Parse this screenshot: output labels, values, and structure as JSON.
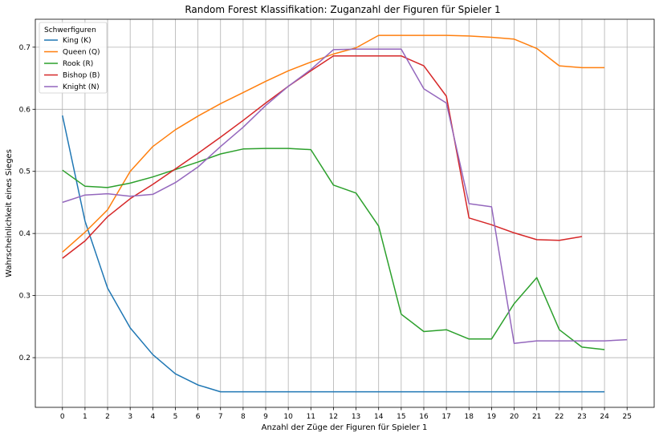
{
  "chart_data": {
    "type": "line",
    "title": "Random Forest Klassifikation: Zuganzahl der Figuren für Spieler 1",
    "xlabel": "Anzahl der Züge der Figuren für Spieler 1",
    "ylabel": "Wahrscheinlichkeit eines Sieges",
    "xlim": [
      -1.2,
      26.2
    ],
    "ylim": [
      0.12,
      0.745
    ],
    "x_ticks": [
      0,
      1,
      2,
      3,
      4,
      5,
      6,
      7,
      8,
      9,
      10,
      11,
      12,
      13,
      14,
      15,
      16,
      17,
      18,
      19,
      20,
      21,
      22,
      23,
      24,
      25
    ],
    "y_ticks": [
      0.2,
      0.3,
      0.4,
      0.5,
      0.6,
      0.7
    ],
    "grid": true,
    "legend": {
      "title": "Schwerfiguren",
      "position": "top-left"
    },
    "series": [
      {
        "name": "King (K)",
        "color": "#1f77b4",
        "x": [
          0,
          1,
          2,
          3,
          4,
          5,
          6,
          7,
          8,
          9,
          10,
          11,
          12,
          13,
          14,
          15,
          16,
          17,
          18,
          19,
          20,
          21,
          22,
          23,
          24
        ],
        "values": [
          0.59,
          0.42,
          0.312,
          0.248,
          0.205,
          0.174,
          0.156,
          0.145,
          0.145,
          0.145,
          0.145,
          0.145,
          0.145,
          0.145,
          0.145,
          0.145,
          0.145,
          0.145,
          0.145,
          0.145,
          0.145,
          0.145,
          0.145,
          0.145,
          0.145
        ]
      },
      {
        "name": "Queen (Q)",
        "color": "#ff7f0e",
        "x": [
          0,
          1,
          2,
          3,
          4,
          5,
          6,
          7,
          8,
          9,
          10,
          11,
          12,
          13,
          14,
          15,
          16,
          17,
          18,
          19,
          20,
          21,
          22,
          23,
          24
        ],
        "values": [
          0.37,
          0.402,
          0.438,
          0.5,
          0.54,
          0.567,
          0.589,
          0.609,
          0.627,
          0.645,
          0.662,
          0.676,
          0.689,
          0.699,
          0.719,
          0.719,
          0.719,
          0.719,
          0.718,
          0.716,
          0.713,
          0.698,
          0.67,
          0.667,
          0.667
        ]
      },
      {
        "name": "Rook (R)",
        "color": "#2ca02c",
        "x": [
          0,
          1,
          2,
          3,
          4,
          5,
          6,
          7,
          8,
          9,
          10,
          11,
          12,
          13,
          14,
          15,
          16,
          17,
          18,
          19,
          20,
          21,
          22,
          23,
          24
        ],
        "values": [
          0.502,
          0.476,
          0.474,
          0.481,
          0.491,
          0.503,
          0.515,
          0.528,
          0.536,
          0.537,
          0.537,
          0.535,
          0.478,
          0.465,
          0.412,
          0.27,
          0.242,
          0.245,
          0.23,
          0.23,
          0.287,
          0.329,
          0.245,
          0.217,
          0.213
        ]
      },
      {
        "name": "Bishop (B)",
        "color": "#d62728",
        "x": [
          0,
          1,
          2,
          3,
          4,
          5,
          6,
          7,
          8,
          9,
          10,
          11,
          12,
          13,
          14,
          15,
          16,
          17,
          18,
          19,
          20,
          21,
          22,
          23
        ],
        "values": [
          0.36,
          0.388,
          0.427,
          0.456,
          0.479,
          0.504,
          0.529,
          0.555,
          0.582,
          0.61,
          0.637,
          0.662,
          0.686,
          0.686,
          0.686,
          0.686,
          0.67,
          0.621,
          0.425,
          0.414,
          0.401,
          0.39,
          0.389,
          0.395
        ]
      },
      {
        "name": "Knight (N)",
        "color": "#9467bd",
        "x": [
          0,
          1,
          2,
          3,
          4,
          5,
          6,
          7,
          8,
          9,
          10,
          11,
          12,
          13,
          14,
          15,
          16,
          17,
          18,
          19,
          20,
          21,
          22,
          23,
          24,
          25
        ],
        "values": [
          0.45,
          0.462,
          0.464,
          0.46,
          0.463,
          0.482,
          0.507,
          0.54,
          0.571,
          0.606,
          0.637,
          0.664,
          0.696,
          0.697,
          0.697,
          0.697,
          0.633,
          0.61,
          0.448,
          0.443,
          0.223,
          0.227,
          0.227,
          0.227,
          0.227,
          0.229
        ]
      }
    ]
  }
}
